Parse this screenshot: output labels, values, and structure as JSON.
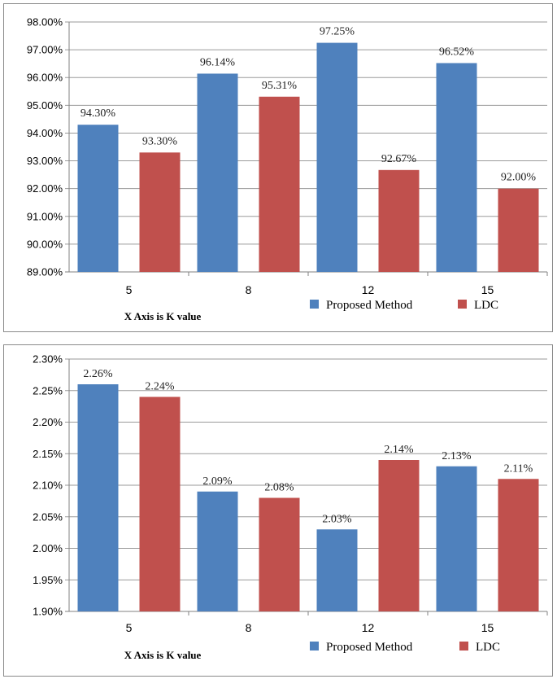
{
  "chart_data": [
    {
      "type": "bar",
      "title": "",
      "xlabel": "X Axis is K value",
      "ylabel": "",
      "categories": [
        "5",
        "8",
        "12",
        "15"
      ],
      "ylim": [
        0.89,
        0.98
      ],
      "yticks": [
        "98.00%",
        "97.00%",
        "96.00%",
        "95.00%",
        "94.00%",
        "93.00%",
        "92.00%",
        "91.00%",
        "90.00%",
        "89.00%"
      ],
      "grid": true,
      "legend": "bottom-right",
      "series": [
        {
          "name": "Proposed Method",
          "color": "#4f81bd",
          "values": [
            0.943,
            0.9614,
            0.9725,
            0.9652
          ],
          "labels": [
            "94.30%",
            "96.14%",
            "97.25%",
            "96.52%"
          ]
        },
        {
          "name": "LDC",
          "color": "#c0504d",
          "values": [
            0.933,
            0.9531,
            0.9267,
            0.92
          ],
          "labels": [
            "93.30%",
            "95.31%",
            "92.67%",
            "92.00%"
          ]
        }
      ]
    },
    {
      "type": "bar",
      "title": "",
      "xlabel": "X Axis is K value",
      "ylabel": "",
      "categories": [
        "5",
        "8",
        "12",
        "15"
      ],
      "ylim": [
        0.019,
        0.023
      ],
      "yticks": [
        "2.30%",
        "2.25%",
        "2.20%",
        "2.15%",
        "2.10%",
        "2.05%",
        "2.00%",
        "1.95%",
        "1.90%"
      ],
      "grid": true,
      "legend": "bottom-right",
      "series": [
        {
          "name": "Proposed Method",
          "color": "#4f81bd",
          "values": [
            0.0226,
            0.0209,
            0.0203,
            0.0213
          ],
          "labels": [
            "2.26%",
            "2.09%",
            "2.03%",
            "2.13%"
          ]
        },
        {
          "name": "LDC",
          "color": "#c0504d",
          "values": [
            0.0224,
            0.0208,
            0.0214,
            0.0211
          ],
          "labels": [
            "2.24%",
            "2.08%",
            "2.14%",
            "2.11%"
          ]
        }
      ]
    }
  ]
}
